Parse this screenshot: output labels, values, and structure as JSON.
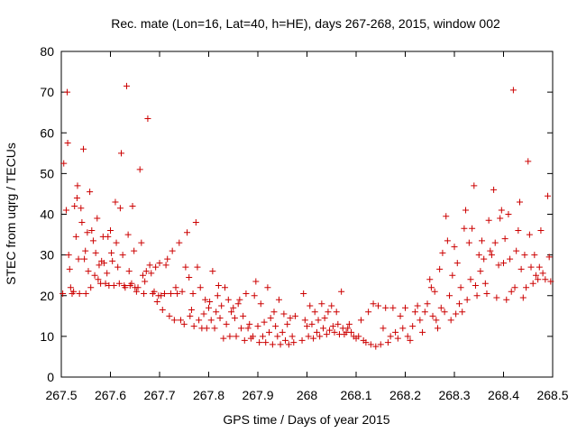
{
  "chart_data": {
    "type": "scatter",
    "title": "Rec. mate (Lon=16, Lat=40, h=HE), days 267-268, 2015, window 002",
    "xlabel": "GPS time / Days of year 2015",
    "ylabel": "STEC from uqrg / TECUs",
    "xlim": [
      267.5,
      268.5
    ],
    "ylim": [
      0,
      80
    ],
    "xticks": [
      "267.5",
      "267.6",
      "267.7",
      "267.8",
      "267.9",
      "268",
      "268.1",
      "268.2",
      "268.3",
      "268.4",
      "268.5"
    ],
    "yticks": [
      "0",
      "10",
      "20",
      "30",
      "40",
      "50",
      "60",
      "70",
      "80"
    ],
    "grid": false,
    "marker": "+",
    "marker_color": "#cc0000",
    "series": [
      {
        "points": [
          [
            267.503,
            20.5
          ],
          [
            267.505,
            52.5
          ],
          [
            267.51,
            41
          ],
          [
            267.512,
            70
          ],
          [
            267.513,
            57.5
          ],
          [
            267.515,
            30
          ],
          [
            267.517,
            26.5
          ],
          [
            267.519,
            22
          ],
          [
            267.522,
            20.5
          ],
          [
            267.525,
            21
          ],
          [
            267.527,
            42
          ],
          [
            267.53,
            34.5
          ],
          [
            267.532,
            44
          ],
          [
            267.533,
            47
          ],
          [
            267.535,
            29
          ],
          [
            267.537,
            20.5
          ],
          [
            267.54,
            41.5
          ],
          [
            267.542,
            38
          ],
          [
            267.545,
            56
          ],
          [
            267.547,
            29
          ],
          [
            267.549,
            31
          ],
          [
            267.55,
            20.5
          ],
          [
            267.553,
            35.5
          ],
          [
            267.555,
            26
          ],
          [
            267.558,
            45.5
          ],
          [
            267.56,
            22
          ],
          [
            267.562,
            36
          ],
          [
            267.565,
            33.5
          ],
          [
            267.568,
            25
          ],
          [
            267.57,
            30.5
          ],
          [
            267.573,
            39
          ],
          [
            267.575,
            24
          ],
          [
            267.577,
            27.5
          ],
          [
            267.58,
            23
          ],
          [
            267.582,
            28.5
          ],
          [
            267.585,
            34.5
          ],
          [
            267.587,
            28
          ],
          [
            267.59,
            23
          ],
          [
            267.593,
            25.5
          ],
          [
            267.595,
            34.5
          ],
          [
            267.597,
            22.5
          ],
          [
            267.6,
            36
          ],
          [
            267.602,
            30.5
          ],
          [
            267.604,
            28.5
          ],
          [
            267.607,
            22.5
          ],
          [
            267.61,
            43
          ],
          [
            267.612,
            33
          ],
          [
            267.615,
            27
          ],
          [
            267.618,
            23
          ],
          [
            267.62,
            41.5
          ],
          [
            267.622,
            55
          ],
          [
            267.625,
            30
          ],
          [
            267.628,
            22.5
          ],
          [
            267.63,
            22
          ],
          [
            267.633,
            71.5
          ],
          [
            267.636,
            35
          ],
          [
            267.638,
            26
          ],
          [
            267.64,
            22.5
          ],
          [
            267.643,
            23
          ],
          [
            267.645,
            42
          ],
          [
            267.648,
            31
          ],
          [
            267.65,
            22
          ],
          [
            267.653,
            21
          ],
          [
            267.656,
            22
          ],
          [
            267.66,
            51
          ],
          [
            267.663,
            33
          ],
          [
            267.666,
            25
          ],
          [
            267.668,
            20.5
          ],
          [
            267.67,
            23.5
          ],
          [
            267.673,
            26
          ],
          [
            267.676,
            63.5
          ],
          [
            267.68,
            27.5
          ],
          [
            267.683,
            25.5
          ],
          [
            267.686,
            20.5
          ],
          [
            267.689,
            21
          ],
          [
            267.692,
            27
          ],
          [
            267.695,
            18.5
          ],
          [
            267.698,
            20
          ],
          [
            267.7,
            28
          ],
          [
            267.703,
            20
          ],
          [
            267.706,
            16.5
          ],
          [
            267.71,
            20.5
          ],
          [
            267.713,
            27.5
          ],
          [
            267.716,
            29
          ],
          [
            267.72,
            15
          ],
          [
            267.723,
            20.5
          ],
          [
            267.726,
            31
          ],
          [
            267.73,
            14
          ],
          [
            267.733,
            22
          ],
          [
            267.736,
            20.5
          ],
          [
            267.74,
            33
          ],
          [
            267.743,
            14
          ],
          [
            267.746,
            21
          ],
          [
            267.75,
            13
          ],
          [
            267.753,
            27
          ],
          [
            267.756,
            35.5
          ],
          [
            267.76,
            24.5
          ],
          [
            267.762,
            15
          ],
          [
            267.765,
            16.5
          ],
          [
            267.768,
            20.5
          ],
          [
            267.77,
            12.5
          ],
          [
            267.774,
            38
          ],
          [
            267.777,
            27
          ],
          [
            267.78,
            14
          ],
          [
            267.783,
            22
          ],
          [
            267.786,
            12
          ],
          [
            267.79,
            15.5
          ],
          [
            267.793,
            19
          ],
          [
            267.796,
            12
          ],
          [
            267.8,
            17
          ],
          [
            267.802,
            18.5
          ],
          [
            267.805,
            14
          ],
          [
            267.808,
            26
          ],
          [
            267.812,
            12
          ],
          [
            267.815,
            16
          ],
          [
            267.818,
            20
          ],
          [
            267.82,
            22.5
          ],
          [
            267.823,
            14.5
          ],
          [
            267.826,
            17.5
          ],
          [
            267.83,
            9.5
          ],
          [
            267.833,
            22
          ],
          [
            267.836,
            13
          ],
          [
            267.84,
            19
          ],
          [
            267.843,
            10
          ],
          [
            267.846,
            16
          ],
          [
            267.85,
            17
          ],
          [
            267.853,
            14.5
          ],
          [
            267.856,
            10
          ],
          [
            267.86,
            18
          ],
          [
            267.863,
            19
          ],
          [
            267.866,
            12
          ],
          [
            267.87,
            15
          ],
          [
            267.873,
            9
          ],
          [
            267.876,
            20.5
          ],
          [
            267.88,
            12
          ],
          [
            267.883,
            13
          ],
          [
            267.886,
            9.5
          ],
          [
            267.89,
            10
          ],
          [
            267.893,
            20
          ],
          [
            267.896,
            23.5
          ],
          [
            267.9,
            12.5
          ],
          [
            267.903,
            8.5
          ],
          [
            267.906,
            18
          ],
          [
            267.91,
            10
          ],
          [
            267.913,
            13.5
          ],
          [
            267.916,
            8.5
          ],
          [
            267.92,
            22
          ],
          [
            267.923,
            11
          ],
          [
            267.926,
            14.5
          ],
          [
            267.93,
            8
          ],
          [
            267.933,
            16
          ],
          [
            267.936,
            12.5
          ],
          [
            267.94,
            10
          ],
          [
            267.943,
            19
          ],
          [
            267.946,
            8
          ],
          [
            267.95,
            11
          ],
          [
            267.953,
            15.5
          ],
          [
            267.956,
            9
          ],
          [
            267.96,
            13
          ],
          [
            267.963,
            8
          ],
          [
            267.966,
            14.5
          ],
          [
            267.97,
            10
          ],
          [
            267.973,
            8.5
          ],
          [
            267.976,
            15
          ],
          [
            267.99,
            9
          ],
          [
            267.993,
            20.5
          ],
          [
            267.996,
            14
          ],
          [
            268,
            12.5
          ],
          [
            268.003,
            10
          ],
          [
            268.006,
            17.5
          ],
          [
            268.01,
            13
          ],
          [
            268.013,
            9.5
          ],
          [
            268.016,
            16
          ],
          [
            268.02,
            11
          ],
          [
            268.023,
            14
          ],
          [
            268.026,
            10
          ],
          [
            268.03,
            18
          ],
          [
            268.033,
            12
          ],
          [
            268.036,
            14.5
          ],
          [
            268.04,
            10.5
          ],
          [
            268.043,
            16
          ],
          [
            268.046,
            11.5
          ],
          [
            268.05,
            17.5
          ],
          [
            268.053,
            12.5
          ],
          [
            268.056,
            11
          ],
          [
            268.06,
            16
          ],
          [
            268.063,
            13
          ],
          [
            268.066,
            10.5
          ],
          [
            268.07,
            21
          ],
          [
            268.073,
            12
          ],
          [
            268.076,
            10.5
          ],
          [
            268.08,
            11
          ],
          [
            268.083,
            12
          ],
          [
            268.086,
            13
          ],
          [
            268.09,
            11
          ],
          [
            268.095,
            10
          ],
          [
            268.1,
            9.5
          ],
          [
            268.105,
            10
          ],
          [
            268.11,
            14
          ],
          [
            268.115,
            9
          ],
          [
            268.12,
            8.5
          ],
          [
            268.125,
            16
          ],
          [
            268.13,
            8
          ],
          [
            268.135,
            18
          ],
          [
            268.14,
            7.5
          ],
          [
            268.145,
            17.5
          ],
          [
            268.15,
            8
          ],
          [
            268.155,
            12
          ],
          [
            268.16,
            17
          ],
          [
            268.165,
            8.5
          ],
          [
            268.17,
            10
          ],
          [
            268.175,
            17
          ],
          [
            268.18,
            11
          ],
          [
            268.185,
            9.5
          ],
          [
            268.19,
            15
          ],
          [
            268.195,
            12
          ],
          [
            268.2,
            17
          ],
          [
            268.205,
            10
          ],
          [
            268.21,
            9
          ],
          [
            268.215,
            12.5
          ],
          [
            268.22,
            16
          ],
          [
            268.225,
            17.5
          ],
          [
            268.23,
            14
          ],
          [
            268.235,
            11
          ],
          [
            268.24,
            16
          ],
          [
            268.245,
            18
          ],
          [
            268.25,
            24
          ],
          [
            268.253,
            22
          ],
          [
            268.256,
            15
          ],
          [
            268.26,
            21
          ],
          [
            268.263,
            14
          ],
          [
            268.266,
            12
          ],
          [
            268.27,
            26.5
          ],
          [
            268.273,
            17
          ],
          [
            268.276,
            30.5
          ],
          [
            268.28,
            16
          ],
          [
            268.283,
            39.5
          ],
          [
            268.286,
            33.5
          ],
          [
            268.29,
            20
          ],
          [
            268.293,
            14
          ],
          [
            268.296,
            25
          ],
          [
            268.3,
            32
          ],
          [
            268.303,
            15.5
          ],
          [
            268.306,
            28
          ],
          [
            268.31,
            18
          ],
          [
            268.313,
            22
          ],
          [
            268.316,
            16
          ],
          [
            268.32,
            36.5
          ],
          [
            268.323,
            41
          ],
          [
            268.326,
            19
          ],
          [
            268.33,
            33
          ],
          [
            268.333,
            24
          ],
          [
            268.336,
            36.5
          ],
          [
            268.34,
            47
          ],
          [
            268.343,
            22.5
          ],
          [
            268.346,
            20
          ],
          [
            268.35,
            30
          ],
          [
            268.353,
            26
          ],
          [
            268.356,
            33.5
          ],
          [
            268.36,
            29
          ],
          [
            268.363,
            23
          ],
          [
            268.366,
            20.5
          ],
          [
            268.37,
            38.5
          ],
          [
            268.373,
            31
          ],
          [
            268.376,
            30
          ],
          [
            268.38,
            46
          ],
          [
            268.383,
            33
          ],
          [
            268.386,
            19.5
          ],
          [
            268.39,
            27.5
          ],
          [
            268.393,
            39
          ],
          [
            268.396,
            41
          ],
          [
            268.4,
            28
          ],
          [
            268.403,
            34
          ],
          [
            268.406,
            19
          ],
          [
            268.41,
            40
          ],
          [
            268.413,
            29
          ],
          [
            268.416,
            21
          ],
          [
            268.42,
            70.5
          ],
          [
            268.423,
            22
          ],
          [
            268.426,
            31
          ],
          [
            268.43,
            36
          ],
          [
            268.433,
            43
          ],
          [
            268.436,
            26.5
          ],
          [
            268.44,
            19.5
          ],
          [
            268.443,
            30
          ],
          [
            268.446,
            22
          ],
          [
            268.45,
            53
          ],
          [
            268.453,
            35
          ],
          [
            268.456,
            27
          ],
          [
            268.46,
            23
          ],
          [
            268.463,
            30
          ],
          [
            268.466,
            25
          ],
          [
            268.47,
            24
          ],
          [
            268.473,
            27
          ],
          [
            268.476,
            36
          ],
          [
            268.48,
            25.5
          ],
          [
            268.485,
            24
          ],
          [
            268.49,
            44.5
          ],
          [
            268.493,
            29.5
          ],
          [
            268.496,
            23.5
          ]
        ]
      }
    ]
  }
}
